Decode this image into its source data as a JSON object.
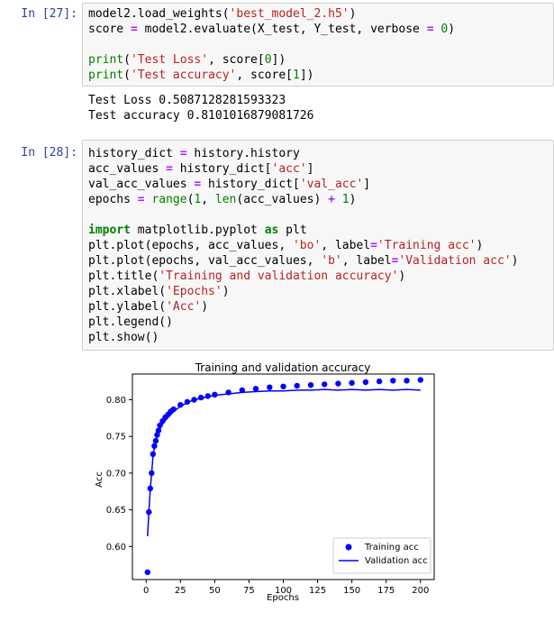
{
  "cell27": {
    "prompt": "In [27]:",
    "lines": [
      "model2.load_weights('best_model_2.h5')",
      "score = model2.evaluate(X_test, Y_test, verbose = 0)",
      "",
      "print('Test Loss', score[0])",
      "print('Test accuracy', score[1])"
    ],
    "output": [
      "Test Loss 0.5087128281593323",
      "Test accuracy 0.8101016879081726"
    ]
  },
  "cell28": {
    "prompt": "In [28]:",
    "lines": [
      "history_dict = history.history",
      "acc_values = history_dict['acc']",
      "val_acc_values = history_dict['val_acc']",
      "epochs = range(1, len(acc_values) + 1)",
      "",
      "import matplotlib.pyplot as plt",
      "plt.plot(epochs, acc_values, 'bo', label='Training acc')",
      "plt.plot(epochs, val_acc_values, 'b', label='Validation acc')",
      "plt.title('Training and validation accuracy')",
      "plt.xlabel('Epochs')",
      "plt.ylabel('Acc')",
      "plt.legend()",
      "plt.show()"
    ]
  },
  "colors": {
    "series": "#0000ff",
    "prompt": "#303f9f",
    "cell_bg": "#f7f7f7"
  },
  "chart_data": {
    "type": "line",
    "title": "Training and validation accuracy",
    "xlabel": "Epochs",
    "ylabel": "Acc",
    "xlim": [
      -10,
      210
    ],
    "ylim": [
      0.555,
      0.835
    ],
    "xticks": [
      0,
      25,
      50,
      75,
      100,
      125,
      150,
      175,
      200
    ],
    "yticks": [
      0.6,
      0.65,
      0.7,
      0.75,
      0.8
    ],
    "ytick_labels": [
      "0.60",
      "0.65",
      "0.70",
      "0.75",
      "0.80"
    ],
    "legend_position": "lower-right",
    "series": [
      {
        "name": "Training acc",
        "style": "dots",
        "x": [
          1,
          2,
          3,
          4,
          5,
          6,
          7,
          8,
          9,
          10,
          12,
          14,
          16,
          18,
          20,
          25,
          30,
          35,
          40,
          45,
          50,
          60,
          70,
          80,
          90,
          100,
          110,
          120,
          130,
          140,
          150,
          160,
          170,
          180,
          190,
          200
        ],
        "y": [
          0.565,
          0.647,
          0.679,
          0.7,
          0.726,
          0.737,
          0.744,
          0.752,
          0.758,
          0.765,
          0.771,
          0.776,
          0.78,
          0.784,
          0.787,
          0.793,
          0.797,
          0.8,
          0.803,
          0.805,
          0.807,
          0.81,
          0.813,
          0.815,
          0.817,
          0.818,
          0.819,
          0.82,
          0.821,
          0.822,
          0.823,
          0.824,
          0.825,
          0.826,
          0.826,
          0.827
        ]
      },
      {
        "name": "Validation acc",
        "style": "line",
        "x": [
          1,
          2,
          3,
          4,
          5,
          6,
          7,
          8,
          10,
          12,
          15,
          20,
          25,
          30,
          35,
          40,
          50,
          60,
          70,
          80,
          90,
          100,
          110,
          120,
          130,
          140,
          150,
          160,
          170,
          180,
          190,
          200
        ],
        "y": [
          0.614,
          0.648,
          0.678,
          0.699,
          0.722,
          0.735,
          0.743,
          0.75,
          0.76,
          0.767,
          0.774,
          0.784,
          0.791,
          0.796,
          0.8,
          0.802,
          0.806,
          0.808,
          0.81,
          0.811,
          0.812,
          0.812,
          0.813,
          0.813,
          0.814,
          0.813,
          0.814,
          0.813,
          0.814,
          0.813,
          0.814,
          0.813
        ]
      }
    ]
  }
}
